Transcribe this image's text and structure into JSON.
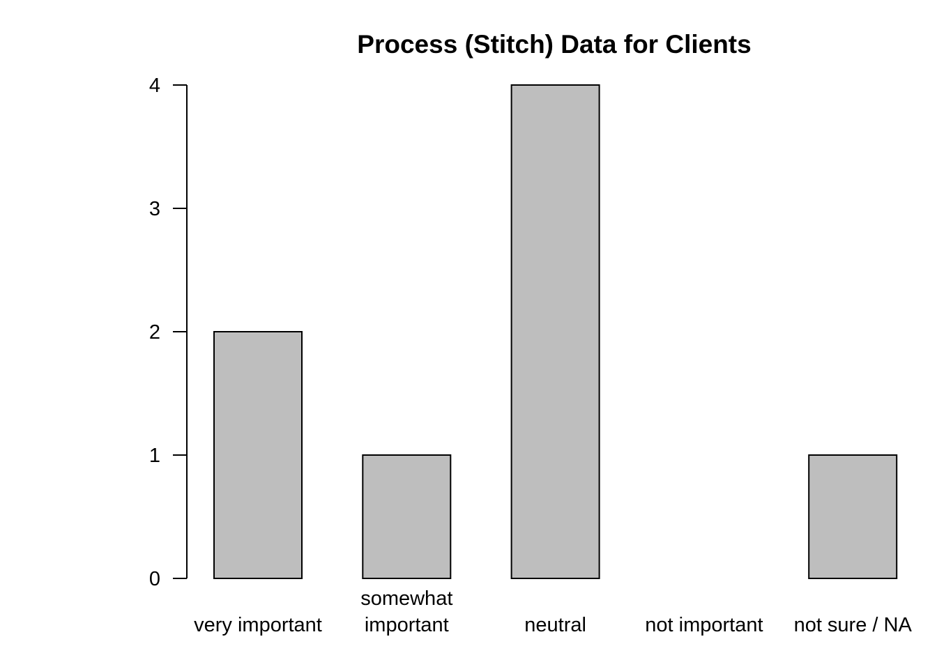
{
  "chart_data": {
    "type": "bar",
    "title": "Process (Stitch) Data for Clients",
    "xlabel": "",
    "ylabel": "",
    "categories": [
      [
        "very important"
      ],
      [
        "somewhat",
        "important"
      ],
      [
        "neutral"
      ],
      [
        "not important"
      ],
      [
        "not sure / NA"
      ]
    ],
    "values": [
      2,
      1,
      4,
      0,
      1
    ],
    "ylim": [
      0,
      4
    ],
    "yticks": [
      0,
      1,
      2,
      3,
      4
    ],
    "grid": false,
    "legend": "none",
    "bar_fill": "#bebebe",
    "bar_stroke": "#000000"
  }
}
